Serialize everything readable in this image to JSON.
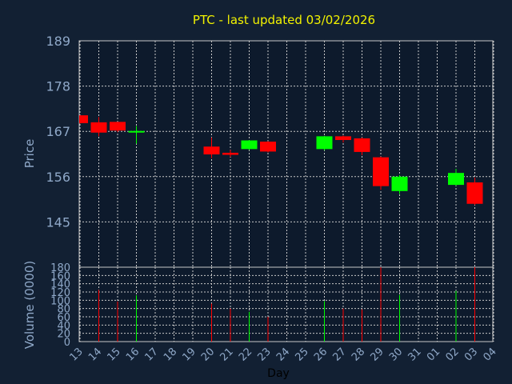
{
  "chart_data": [
    {
      "type": "candlestick",
      "title": "PTC - last updated 03/02/2026",
      "ylabel": "Price",
      "ylim": [
        134,
        189
      ],
      "yticks": [
        "189",
        "178",
        "167",
        "156",
        "145"
      ],
      "grid": true,
      "colors": {
        "up": "#00ff00",
        "down": "#ff0000",
        "background": "#122033",
        "plot_bg": "#0d1a2c",
        "grid": "#c8c8c8",
        "axis_text": "#8fa8c8",
        "title": "#f2f200"
      },
      "candles": [
        {
          "x": "13",
          "open": 170.9,
          "high": 170.9,
          "low": 168.9,
          "close": 169.0
        },
        {
          "x": "14",
          "open": 169.2,
          "high": 170.5,
          "low": 165.8,
          "close": 166.7
        },
        {
          "x": "15",
          "open": 169.3,
          "high": 169.3,
          "low": 166.8,
          "close": 167.2
        },
        {
          "x": "16",
          "open": 166.7,
          "high": 168.3,
          "low": 164.0,
          "close": 166.9
        },
        {
          "x": "20",
          "open": 163.3,
          "high": 165.5,
          "low": 160.5,
          "close": 161.4
        },
        {
          "x": "21",
          "open": 161.8,
          "high": 162.5,
          "low": 160.8,
          "close": 161.3
        },
        {
          "x": "22",
          "open": 162.7,
          "high": 164.9,
          "low": 162.5,
          "close": 164.8
        },
        {
          "x": "23",
          "open": 164.5,
          "high": 164.6,
          "low": 161.9,
          "close": 162.1
        },
        {
          "x": "26",
          "open": 162.7,
          "high": 165.9,
          "low": 162.4,
          "close": 165.8
        },
        {
          "x": "27",
          "open": 165.8,
          "high": 166.0,
          "low": 164.3,
          "close": 164.9
        },
        {
          "x": "28",
          "open": 165.3,
          "high": 165.5,
          "low": 161.2,
          "close": 162.0
        },
        {
          "x": "29",
          "open": 160.7,
          "high": 160.9,
          "low": 152.8,
          "close": 153.7
        },
        {
          "x": "30",
          "open": 152.5,
          "high": 156.4,
          "low": 151.8,
          "close": 156.0
        },
        {
          "x": "02",
          "open": 154.0,
          "high": 157.9,
          "low": 153.8,
          "close": 156.9
        },
        {
          "x": "03",
          "open": 154.6,
          "high": 155.8,
          "low": 149.1,
          "close": 149.4
        }
      ]
    },
    {
      "type": "bar",
      "ylabel": "Volume (0000)",
      "xlabel": "Day",
      "ylim": [
        0,
        180
      ],
      "yticks": [
        "180",
        "160",
        "140",
        "120",
        "100",
        "80",
        "60",
        "40",
        "20",
        "0"
      ],
      "categories": [
        "13",
        "14",
        "15",
        "16",
        "17",
        "18",
        "19",
        "20",
        "21",
        "22",
        "23",
        "24",
        "25",
        "26",
        "27",
        "28",
        "29",
        "30",
        "31",
        "01",
        "02",
        "03",
        "04"
      ],
      "values": [
        {
          "x": "14",
          "volume": 125,
          "dir": "down"
        },
        {
          "x": "15",
          "volume": 97,
          "dir": "down"
        },
        {
          "x": "16",
          "volume": 112,
          "dir": "up"
        },
        {
          "x": "20",
          "volume": 92,
          "dir": "down"
        },
        {
          "x": "21",
          "volume": 80,
          "dir": "down"
        },
        {
          "x": "22",
          "volume": 72,
          "dir": "up"
        },
        {
          "x": "23",
          "volume": 60,
          "dir": "down"
        },
        {
          "x": "26",
          "volume": 98,
          "dir": "up"
        },
        {
          "x": "27",
          "volume": 80,
          "dir": "down"
        },
        {
          "x": "28",
          "volume": 78,
          "dir": "down"
        },
        {
          "x": "29",
          "volume": 180,
          "dir": "down"
        },
        {
          "x": "30",
          "volume": 113,
          "dir": "up"
        },
        {
          "x": "02",
          "volume": 123,
          "dir": "up"
        },
        {
          "x": "03",
          "volume": 180,
          "dir": "down"
        }
      ]
    }
  ]
}
